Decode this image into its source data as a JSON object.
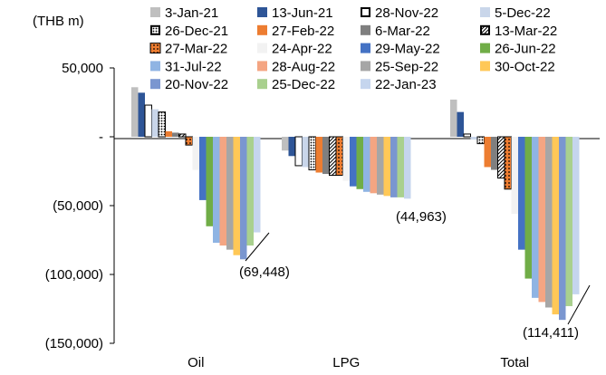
{
  "chart_data": {
    "type": "bar",
    "unit_label": "(THB m)",
    "categories": [
      "Oil",
      "LPG",
      "Total"
    ],
    "y_ticks": [
      {
        "value": 50000,
        "label": "50,000"
      },
      {
        "value": 0,
        "label": "-"
      },
      {
        "value": -50000,
        "label": "(50,000)"
      },
      {
        "value": -100000,
        "label": "(100,000)"
      },
      {
        "value": -150000,
        "label": "(150,000)"
      }
    ],
    "ylim": [
      -150000,
      50000
    ],
    "legend_position": "top",
    "series": [
      {
        "name": "3-Jan-21",
        "color": "#BFBFBF",
        "pattern": "solid",
        "values": [
          36000,
          -10000,
          27000
        ]
      },
      {
        "name": "13-Jun-21",
        "color": "#2E5597",
        "pattern": "solid",
        "values": [
          32000,
          -14000,
          18000
        ]
      },
      {
        "name": "28-Nov-22",
        "color": "#FFFFFF",
        "pattern": "outline",
        "values": [
          23000,
          -21000,
          2000
        ]
      },
      {
        "name": "5-Dec-22",
        "color": "#C9D6EA",
        "pattern": "solid",
        "values": [
          20000,
          -22000,
          -2000
        ]
      },
      {
        "name": "26-Dec-21",
        "color": "#FFFFFF",
        "pattern": "dots",
        "values": [
          18000,
          -24000,
          -5000
        ]
      },
      {
        "name": "27-Feb-22",
        "color": "#ED7D31",
        "pattern": "solid",
        "values": [
          4000,
          -26000,
          -22000
        ]
      },
      {
        "name": "6-Mar-22",
        "color": "#7F7F7F",
        "pattern": "solid",
        "values": [
          3000,
          -27000,
          -24000
        ]
      },
      {
        "name": "13-Mar-22",
        "color": "#FFFFFF",
        "pattern": "hatch",
        "values": [
          2000,
          -28000,
          -30000
        ]
      },
      {
        "name": "27-Mar-22",
        "color": "#ED7D31",
        "pattern": "orangedots",
        "values": [
          -6000,
          -28000,
          -38000
        ]
      },
      {
        "name": "24-Apr-22",
        "color": "#F2F2F2",
        "pattern": "solid",
        "values": [
          -24000,
          -32000,
          -56000
        ]
      },
      {
        "name": "29-May-22",
        "color": "#4472C4",
        "pattern": "solid",
        "values": [
          -46000,
          -36000,
          -82000
        ]
      },
      {
        "name": "26-Jun-22",
        "color": "#70AD47",
        "pattern": "solid",
        "values": [
          -65000,
          -38000,
          -103000
        ]
      },
      {
        "name": "31-Jul-22",
        "color": "#8FB4E3",
        "pattern": "solid",
        "values": [
          -77000,
          -40000,
          -117000
        ]
      },
      {
        "name": "28-Aug-22",
        "color": "#F4A582",
        "pattern": "solid",
        "values": [
          -79000,
          -41000,
          -120000
        ]
      },
      {
        "name": "25-Sep-22",
        "color": "#A6A6A6",
        "pattern": "solid",
        "values": [
          -82000,
          -42000,
          -124000
        ]
      },
      {
        "name": "30-Oct-22",
        "color": "#FFC857",
        "pattern": "solid",
        "values": [
          -86000,
          -43000,
          -129000
        ]
      },
      {
        "name": "20-Nov-22",
        "color": "#7A96D0",
        "pattern": "solid",
        "values": [
          -89000,
          -44000,
          -133000
        ]
      },
      {
        "name": "25-Dec-22",
        "color": "#A9D08E",
        "pattern": "solid",
        "values": [
          -79000,
          -44000,
          -123000
        ]
      },
      {
        "name": "22-Jan-23",
        "color": "#C5D5EE",
        "pattern": "solid",
        "values": [
          -69448,
          -44963,
          -114411
        ]
      }
    ],
    "data_labels": [
      {
        "category": "Oil",
        "series": "22-Jan-23",
        "text": "(69,448)"
      },
      {
        "category": "LPG",
        "series": "22-Jan-23",
        "text": "(44,963)"
      },
      {
        "category": "Total",
        "series": "22-Jan-23",
        "text": "(114,411)"
      }
    ]
  }
}
